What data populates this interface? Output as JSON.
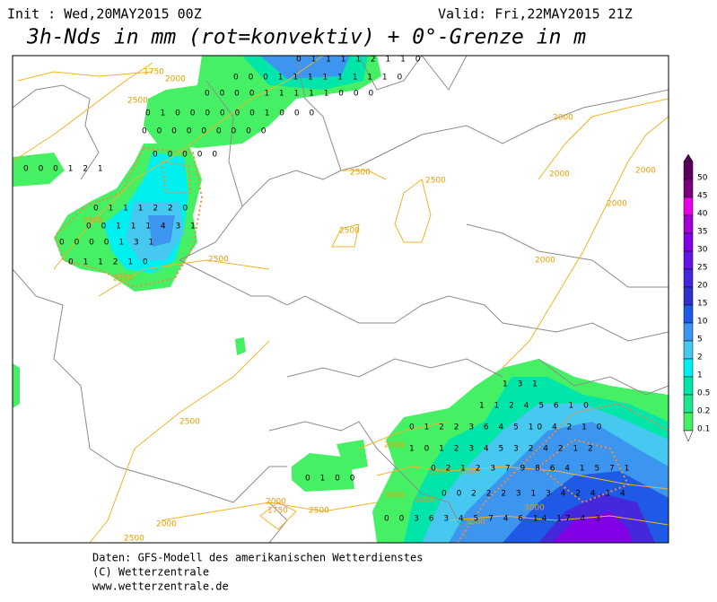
{
  "header": {
    "init": "Init : Wed,20MAY2015 00Z",
    "valid": "Valid: Fri,22MAY2015 21Z",
    "title": "3h-Nds in mm (rot=konvektiv) + 0°-Grenze in m"
  },
  "colorbar": [
    {
      "label": "50",
      "color": "#5a005a"
    },
    {
      "label": "45",
      "color": "#7a007a"
    },
    {
      "label": "40",
      "color": "#e600e6"
    },
    {
      "label": "35",
      "color": "#a000d2"
    },
    {
      "label": "30",
      "color": "#8200e6"
    },
    {
      "label": "25",
      "color": "#6414e6"
    },
    {
      "label": "20",
      "color": "#4628dc"
    },
    {
      "label": "15",
      "color": "#2d32c8"
    },
    {
      "label": "10",
      "color": "#1e5ae6"
    },
    {
      "label": "5",
      "color": "#3c96f0"
    },
    {
      "label": "2",
      "color": "#46c8f0"
    },
    {
      "label": "1",
      "color": "#00f0f0"
    },
    {
      "label": "0.5",
      "color": "#00e6aa"
    },
    {
      "label": "0.2",
      "color": "#1ee68c"
    },
    {
      "label": "0.1",
      "color": "#46f064"
    }
  ],
  "contour_labels": [
    "1750",
    "2000",
    "2500",
    "2500",
    "2000",
    "2000",
    "2000",
    "2000",
    "2500",
    "2500",
    "2500",
    "2500",
    "2500",
    "2000",
    "2500",
    "2000",
    "2000",
    "3000",
    "3000",
    "3000",
    "2500",
    "2000",
    "2500",
    "1750",
    "2000",
    "2500",
    "3000"
  ],
  "grid_labels": [
    "0 1 1 1 1 2 1 1 0",
    "0 0 0 1 1 1 1 1 1 1 1 0",
    "0 0 0 0 1 1 1 1 1 0 0 0",
    "0 1 0 0 0 0 0 0 1 0 0 0",
    "0 0 0 0 0 0 0 0 0",
    "0 0 0 0 0",
    "0 0 0 1 2 1",
    "0 1 1 1 2 2 0",
    "0 0 1 1 1 4 3 1",
    "0 0 0 0 1 3 1",
    "0 1 1 2 1 0",
    "1 3 1",
    "1 1 2 4 5 6 1 0",
    "0 1 2 2 3 6 4 5 10 4 2 1 0",
    "1 0 1 2 3 4 5 3 2 4 2 1 2",
    "0 2 1 2 3 7 9 8 6 4 1 5 7 1",
    "0 0 2 2 2 3 1 3 4 2 4 1 4",
    "0 0 3 6 3 4 5 7 4 6 14 17 4 3",
    "0 1 0 0"
  ],
  "footer": [
    "Daten: GFS-Modell des amerikanischen Wetterdienstes",
    "(C) Wetterzentrale",
    "www.wetterzentrale.de"
  ]
}
